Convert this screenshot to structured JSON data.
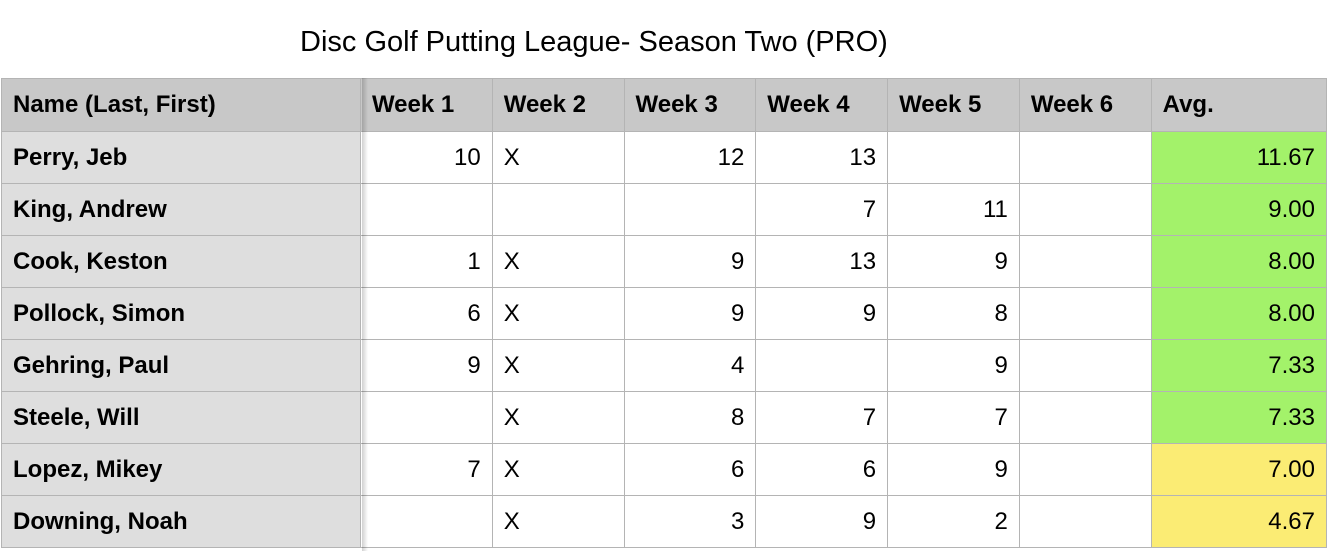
{
  "title": "Disc Golf Putting League- Season Two (PRO)",
  "colors": {
    "header_bg": "#c8c8c8",
    "name_bg": "#dedede",
    "avg_high": "#a3f26a",
    "avg_mid": "#fbec74"
  },
  "table": {
    "headers": [
      "Name (Last, First)",
      "Week 1",
      "Week 2",
      "Week 3",
      "Week 4",
      "Week 5",
      "Week 6",
      "Avg."
    ],
    "rows": [
      {
        "name": "Perry, Jeb",
        "weeks": [
          "10",
          "X",
          "12",
          "13",
          "",
          ""
        ],
        "avg": "11.67",
        "avg_color": "green"
      },
      {
        "name": "King, Andrew",
        "weeks": [
          "",
          "",
          "",
          "7",
          "11",
          ""
        ],
        "avg": "9.00",
        "avg_color": "green"
      },
      {
        "name": "Cook, Keston",
        "weeks": [
          "1",
          "X",
          "9",
          "13",
          "9",
          ""
        ],
        "avg": "8.00",
        "avg_color": "green"
      },
      {
        "name": "Pollock, Simon",
        "weeks": [
          "6",
          "X",
          "9",
          "9",
          "8",
          ""
        ],
        "avg": "8.00",
        "avg_color": "green"
      },
      {
        "name": "Gehring, Paul",
        "weeks": [
          "9",
          "X",
          "4",
          "",
          "9",
          ""
        ],
        "avg": "7.33",
        "avg_color": "green"
      },
      {
        "name": "Steele, Will",
        "weeks": [
          "",
          "X",
          "8",
          "7",
          "7",
          ""
        ],
        "avg": "7.33",
        "avg_color": "green"
      },
      {
        "name": "Lopez, Mikey",
        "weeks": [
          "7",
          "X",
          "6",
          "6",
          "9",
          ""
        ],
        "avg": "7.00",
        "avg_color": "yellow"
      },
      {
        "name": "Downing, Noah",
        "weeks": [
          "",
          "X",
          "3",
          "9",
          "2",
          ""
        ],
        "avg": "4.67",
        "avg_color": "yellow"
      }
    ]
  }
}
